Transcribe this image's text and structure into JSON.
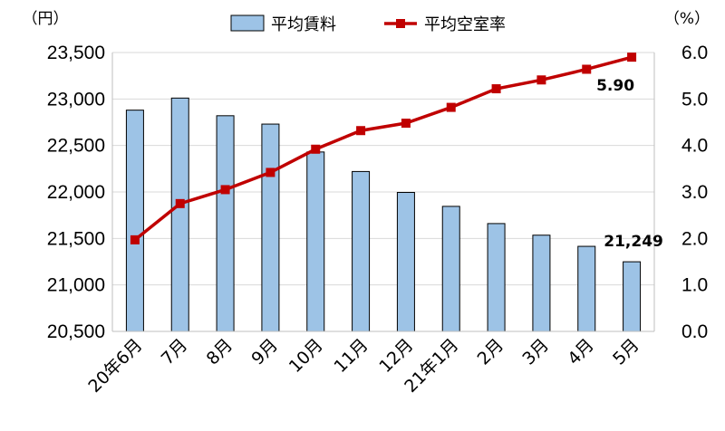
{
  "chart_data": {
    "type": "bar+line",
    "categories": [
      "20年6月",
      "7月",
      "8月",
      "9月",
      "10月",
      "11月",
      "12月",
      "21年1月",
      "2月",
      "3月",
      "4月",
      "5月"
    ],
    "series": [
      {
        "name": "平均賃料",
        "type": "bar",
        "axis": "left",
        "color": "#9dc3e6",
        "values": [
          22880,
          23010,
          22820,
          22730,
          22430,
          22220,
          21995,
          21845,
          21660,
          21535,
          21415,
          21249
        ]
      },
      {
        "name": "平均空室率",
        "type": "line",
        "axis": "right",
        "color": "#c00000",
        "values": [
          1.97,
          2.75,
          3.05,
          3.42,
          3.92,
          4.32,
          4.48,
          4.82,
          5.22,
          5.41,
          5.64,
          5.9
        ]
      }
    ],
    "y_left": {
      "unit": "（円）",
      "range": [
        20500,
        23500
      ],
      "ticks": [
        20500,
        21000,
        21500,
        22000,
        22500,
        23000,
        23500
      ],
      "tick_labels": [
        "20,500",
        "21,000",
        "21,500",
        "22,000",
        "22,500",
        "23,000",
        "23,500"
      ]
    },
    "y_right": {
      "unit": "（%）",
      "range": [
        0,
        6
      ],
      "ticks": [
        0,
        1,
        2,
        3,
        4,
        5,
        6
      ],
      "tick_labels": [
        "0.0",
        "1.0",
        "2.0",
        "3.0",
        "4.0",
        "5.0",
        "6.0"
      ]
    },
    "annotations": [
      {
        "text": "5.90",
        "series": "平均空室率",
        "index": 11
      },
      {
        "text": "21,249",
        "series": "平均賃料",
        "index": 11
      }
    ],
    "legend": "top-center",
    "grid": true
  }
}
